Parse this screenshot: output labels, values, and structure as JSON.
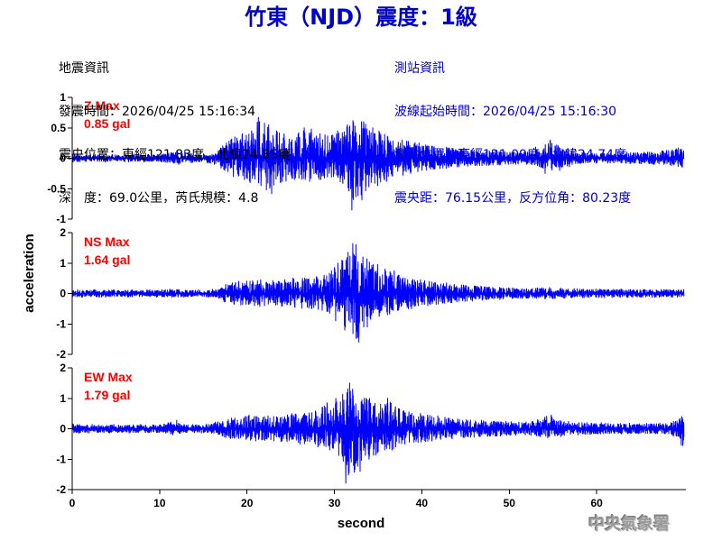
{
  "title": "竹東（NJD）震度：1級",
  "event_info": {
    "heading": "地震資訊",
    "origin_time": "發震時間：2026/04/25 15:16:34",
    "epicenter": "震央位置：東經121.83度，北緯24.85度",
    "depth_magnitude": "深　度：69.0公里，芮氏規模：4.8"
  },
  "station_info": {
    "heading": "測站資訊",
    "start_time": "波線起始時間：2026/04/25 15:16:30",
    "location": "測站位置：東經121.09度，北緯24.74度",
    "distance": "震央距：76.15公里，反方位角：80.23度"
  },
  "watermark": "中央氣象署",
  "colors": {
    "title": "#0000cc",
    "event_info": "#000000",
    "station_info": "#0000cc",
    "trace": "#0000ff",
    "max_label": "#ff0000",
    "axis": "#000000",
    "watermark": "#9a9a9a"
  },
  "chart_data": {
    "type": "line",
    "xlabel": "second",
    "ylabel": "acceleration",
    "xlim": [
      0,
      70
    ],
    "xticks": [
      0,
      10,
      20,
      30,
      40,
      50,
      60
    ],
    "grid": false,
    "x": [
      0,
      1,
      2,
      3,
      4,
      5,
      6,
      7,
      8,
      9,
      10,
      11,
      12,
      13,
      14,
      15,
      16,
      17,
      18,
      19,
      20,
      21,
      22,
      23,
      24,
      25,
      26,
      27,
      28,
      29,
      30,
      31,
      32,
      33,
      34,
      35,
      36,
      37,
      38,
      39,
      40,
      41,
      42,
      43,
      44,
      45,
      46,
      47,
      48,
      49,
      50,
      51,
      52,
      53,
      54,
      55,
      56,
      57,
      58,
      59,
      60,
      61,
      62,
      63,
      64,
      65,
      66,
      67,
      68,
      69
    ],
    "panels": [
      {
        "label": "Z Max",
        "peak": "0.85 gal",
        "ylim": [
          -1,
          1
        ],
        "yticks": [
          1,
          0.5,
          0,
          -0.5,
          -1
        ],
        "envelope_max": [
          0.06,
          0.05,
          0.06,
          0.05,
          0.06,
          0.05,
          0.06,
          0.07,
          0.06,
          0.06,
          0.07,
          0.1,
          0.12,
          0.08,
          0.06,
          0.07,
          0.09,
          0.25,
          0.35,
          0.4,
          0.45,
          0.67,
          0.55,
          0.45,
          0.4,
          0.42,
          0.5,
          0.48,
          0.4,
          0.38,
          0.45,
          0.55,
          0.62,
          0.6,
          0.5,
          0.42,
          0.35,
          0.3,
          0.28,
          0.25,
          0.22,
          0.2,
          0.18,
          0.17,
          0.15,
          0.14,
          0.13,
          0.12,
          0.12,
          0.11,
          0.1,
          0.1,
          0.1,
          0.18,
          0.3,
          0.22,
          0.15,
          0.12,
          0.09,
          0.08,
          0.08,
          0.08,
          0.09,
          0.1,
          0.09,
          0.1,
          0.1,
          0.12,
          0.14,
          0.17
        ],
        "envelope_min": [
          -0.06,
          -0.05,
          -0.05,
          -0.06,
          -0.05,
          -0.05,
          -0.06,
          -0.05,
          -0.06,
          -0.05,
          -0.07,
          -0.08,
          -0.1,
          -0.07,
          -0.06,
          -0.08,
          -0.1,
          -0.22,
          -0.3,
          -0.35,
          -0.4,
          -0.45,
          -0.58,
          -0.4,
          -0.38,
          -0.35,
          -0.35,
          -0.38,
          -0.35,
          -0.3,
          -0.4,
          -0.5,
          -0.85,
          -0.6,
          -0.45,
          -0.38,
          -0.3,
          -0.28,
          -0.25,
          -0.22,
          -0.2,
          -0.18,
          -0.17,
          -0.15,
          -0.14,
          -0.13,
          -0.12,
          -0.12,
          -0.11,
          -0.1,
          -0.1,
          -0.09,
          -0.1,
          -0.15,
          -0.25,
          -0.2,
          -0.14,
          -0.1,
          -0.08,
          -0.08,
          -0.07,
          -0.08,
          -0.08,
          -0.09,
          -0.08,
          -0.09,
          -0.1,
          -0.1,
          -0.12,
          -0.15
        ]
      },
      {
        "label": "NS Max",
        "peak": "1.64 gal",
        "ylim": [
          -2,
          2
        ],
        "yticks": [
          2,
          1,
          0,
          -1,
          -2
        ],
        "envelope_max": [
          0.12,
          0.1,
          0.12,
          0.1,
          0.12,
          0.1,
          0.12,
          0.1,
          0.12,
          0.1,
          0.12,
          0.14,
          0.12,
          0.1,
          0.12,
          0.1,
          0.14,
          0.3,
          0.35,
          0.4,
          0.42,
          0.45,
          0.42,
          0.4,
          0.45,
          0.5,
          0.5,
          0.55,
          0.6,
          0.75,
          1.0,
          1.35,
          1.64,
          1.2,
          0.95,
          0.8,
          0.75,
          0.6,
          0.5,
          0.45,
          0.42,
          0.38,
          0.35,
          0.3,
          0.28,
          0.26,
          0.24,
          0.22,
          0.2,
          0.18,
          0.18,
          0.16,
          0.16,
          0.18,
          0.2,
          0.17,
          0.15,
          0.16,
          0.14,
          0.15,
          0.14,
          0.13,
          0.14,
          0.13,
          0.12,
          0.13,
          0.12,
          0.13,
          0.12,
          0.13
        ],
        "envelope_min": [
          -0.12,
          -0.12,
          -0.1,
          -0.12,
          -0.1,
          -0.1,
          -0.12,
          -0.1,
          -0.1,
          -0.12,
          -0.1,
          -0.12,
          -0.12,
          -0.1,
          -0.1,
          -0.12,
          -0.12,
          -0.28,
          -0.35,
          -0.38,
          -0.4,
          -0.42,
          -0.4,
          -0.42,
          -0.4,
          -0.45,
          -0.48,
          -0.5,
          -0.55,
          -0.65,
          -0.9,
          -1.2,
          -1.6,
          -1.1,
          -0.85,
          -0.75,
          -0.7,
          -0.55,
          -0.5,
          -0.42,
          -0.4,
          -0.36,
          -0.32,
          -0.3,
          -0.27,
          -0.25,
          -0.22,
          -0.2,
          -0.2,
          -0.18,
          -0.17,
          -0.16,
          -0.15,
          -0.16,
          -0.18,
          -0.16,
          -0.15,
          -0.14,
          -0.14,
          -0.13,
          -0.14,
          -0.13,
          -0.12,
          -0.13,
          -0.12,
          -0.12,
          -0.13,
          -0.12,
          -0.12,
          -0.12
        ]
      },
      {
        "label": "EW Max",
        "peak": "1.79 gal",
        "ylim": [
          -2,
          2
        ],
        "yticks": [
          2,
          1,
          0,
          -1,
          -2
        ],
        "envelope_max": [
          0.15,
          0.12,
          0.14,
          0.12,
          0.14,
          0.12,
          0.13,
          0.14,
          0.12,
          0.13,
          0.15,
          0.28,
          0.16,
          0.14,
          0.13,
          0.15,
          0.22,
          0.3,
          0.35,
          0.38,
          0.45,
          0.4,
          0.42,
          0.4,
          0.45,
          0.5,
          0.5,
          0.55,
          0.7,
          0.85,
          1.0,
          1.5,
          1.3,
          1.0,
          1.0,
          0.8,
          1.0,
          0.65,
          0.55,
          0.5,
          0.45,
          0.42,
          0.38,
          0.35,
          0.32,
          0.3,
          0.28,
          0.26,
          0.25,
          0.24,
          0.23,
          0.22,
          0.24,
          0.3,
          0.45,
          0.3,
          0.24,
          0.2,
          0.2,
          0.18,
          0.2,
          0.18,
          0.17,
          0.18,
          0.16,
          0.17,
          0.16,
          0.18,
          0.2,
          0.4
        ],
        "envelope_min": [
          -0.15,
          -0.14,
          -0.12,
          -0.13,
          -0.14,
          -0.12,
          -0.14,
          -0.12,
          -0.13,
          -0.12,
          -0.14,
          -0.2,
          -0.15,
          -0.13,
          -0.14,
          -0.13,
          -0.18,
          -0.28,
          -0.32,
          -0.35,
          -0.38,
          -0.4,
          -0.38,
          -0.42,
          -0.42,
          -0.45,
          -0.5,
          -0.5,
          -0.6,
          -0.7,
          -0.9,
          -1.79,
          -1.4,
          -1.0,
          -0.9,
          -0.75,
          -0.7,
          -0.6,
          -0.5,
          -0.45,
          -0.42,
          -0.4,
          -0.35,
          -0.33,
          -0.3,
          -0.28,
          -0.26,
          -0.25,
          -0.24,
          -0.22,
          -0.22,
          -0.2,
          -0.22,
          -0.26,
          -0.3,
          -0.26,
          -0.22,
          -0.2,
          -0.18,
          -0.18,
          -0.17,
          -0.16,
          -0.17,
          -0.16,
          -0.16,
          -0.15,
          -0.16,
          -0.16,
          -0.18,
          -0.55
        ]
      }
    ]
  }
}
